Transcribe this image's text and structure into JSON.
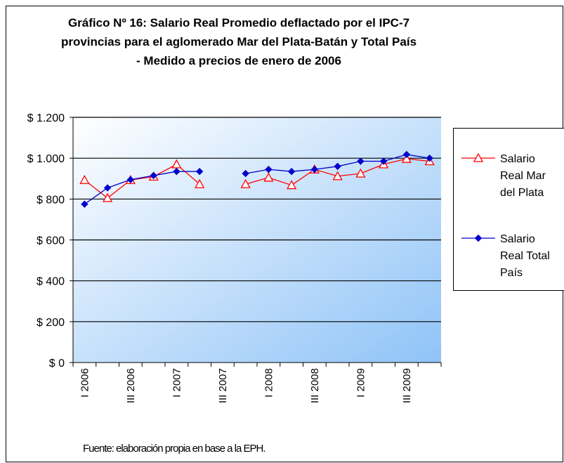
{
  "chart_data": {
    "type": "line",
    "title": [
      "Gráfico Nº 16: Salario Real Promedio deflactado por el IPC-7",
      "provincias para el aglomerado Mar del Plata-Batán y Total País",
      "- Medido a precios de enero de 2006"
    ],
    "categories": [
      "I 2006",
      null,
      "III 2006",
      null,
      "I 2007",
      null,
      "III 2007",
      null,
      "I 2008",
      null,
      "III 2008",
      null,
      "I 2009",
      null,
      "III 2009",
      null
    ],
    "series": [
      {
        "name": "Salario Real Mar del Plata",
        "color": "#ff0000",
        "marker": "triangle",
        "values": [
          893,
          805,
          893,
          910,
          970,
          873,
          null,
          873,
          905,
          868,
          945,
          912,
          925,
          970,
          997,
          985
        ]
      },
      {
        "name": "Salario Real Total País",
        "color": "#0000cc",
        "marker": "diamond",
        "values": [
          775,
          855,
          895,
          915,
          935,
          935,
          null,
          925,
          945,
          935,
          945,
          960,
          985,
          985,
          1018,
          1000
        ]
      }
    ],
    "ylim": [
      0,
      1200
    ],
    "yticks": [
      {
        "value": 0,
        "label": "$ 0"
      },
      {
        "value": 200,
        "label": "$ 200"
      },
      {
        "value": 400,
        "label": "$ 400"
      },
      {
        "value": 600,
        "label": "$ 600"
      },
      {
        "value": 800,
        "label": "$ 800"
      },
      {
        "value": 1000,
        "label": "$ 1.000"
      },
      {
        "value": 1200,
        "label": "$ 1.200"
      }
    ],
    "grid": true,
    "legend": "right",
    "source": "Fuente: elaboración propia en base a la EPH."
  }
}
